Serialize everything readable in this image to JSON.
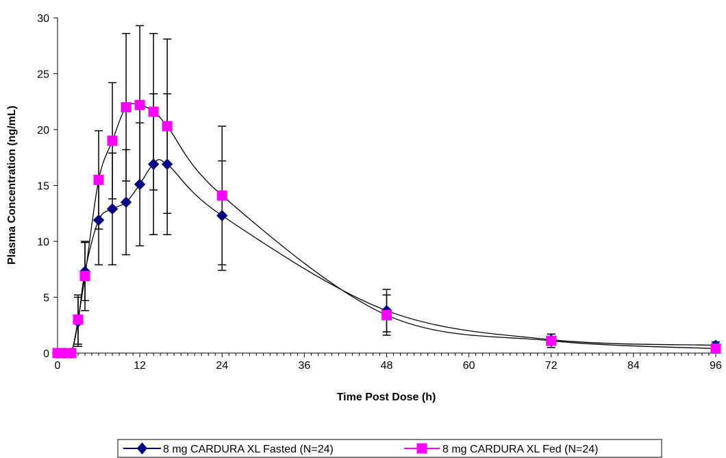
{
  "chart_data": {
    "type": "line",
    "title": "",
    "xlabel": "Time Post Dose (h)",
    "ylabel": "Plasma Concentration (ng/mL)",
    "xlim": [
      0,
      96
    ],
    "ylim": [
      0,
      30
    ],
    "xticks": [
      0,
      12,
      24,
      36,
      48,
      60,
      72,
      84,
      96
    ],
    "yticks": [
      0,
      5,
      10,
      15,
      20,
      25,
      30
    ],
    "xtick_labels": [
      "0",
      "12",
      "24",
      "36",
      "48",
      "60",
      "72",
      "84",
      "96"
    ],
    "ytick_labels": [
      "0",
      "5",
      "10",
      "15",
      "20",
      "25",
      "30"
    ],
    "grid": false,
    "legend_position": "bottom",
    "series": [
      {
        "name": "8 mg CARDURA XL Fasted (N=24)",
        "color": "#000080",
        "marker": "diamond",
        "x": [
          0,
          1,
          2,
          3,
          4,
          6,
          8,
          10,
          12,
          14,
          16,
          24,
          48,
          72,
          96
        ],
        "y": [
          0,
          0,
          0,
          2.8,
          7.3,
          11.9,
          12.9,
          13.5,
          15.1,
          16.9,
          16.9,
          12.3,
          3.8,
          1.2,
          0.7
        ],
        "error": [
          0,
          0,
          0,
          2.2,
          2.6,
          4.0,
          5.0,
          4.7,
          5.5,
          6.3,
          6.3,
          4.9,
          1.9,
          0.5,
          0.3
        ]
      },
      {
        "name": "8 mg CARDURA XL Fed (N=24)",
        "color": "#FF00FF",
        "marker": "square",
        "x": [
          0,
          1,
          2,
          3,
          4,
          6,
          8,
          10,
          12,
          14,
          16,
          24,
          48,
          72,
          96
        ],
        "y": [
          0,
          0,
          0,
          3.0,
          6.9,
          15.5,
          19.0,
          22.0,
          22.2,
          21.6,
          20.3,
          14.1,
          3.4,
          1.1,
          0.4
        ],
        "error": [
          0,
          0,
          0,
          2.2,
          3.1,
          4.4,
          5.2,
          6.6,
          7.1,
          7.0,
          7.8,
          6.2,
          1.8,
          0.6,
          0.2
        ]
      }
    ]
  }
}
